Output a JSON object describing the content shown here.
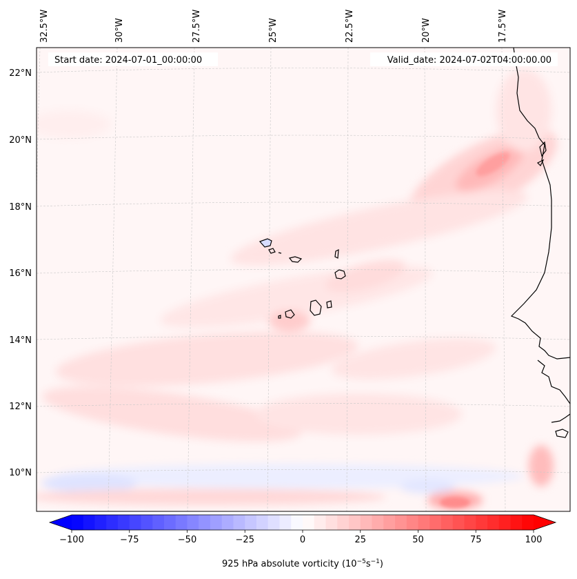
{
  "map": {
    "lon_labels": [
      "32.5°W",
      "30°W",
      "27.5°W",
      "25°W",
      "22.5°W",
      "20°W",
      "17.5°W"
    ],
    "lat_labels": [
      "22°N",
      "20°N",
      "18°N",
      "16°N",
      "14°N",
      "12°N",
      "10°N"
    ],
    "start_date": "Start date: 2024-07-01_00:00:00",
    "valid_date": "Valid_date: 2024-07-02T04:00:00.00"
  },
  "colorbar": {
    "ticks": [
      "−100",
      "−75",
      "−50",
      "−25",
      "0",
      "25",
      "50",
      "75",
      "100"
    ],
    "label_prefix": "925 hPa absolute vorticity (10",
    "label_exp1": "−5",
    "label_mid": "s",
    "label_exp2": "−1",
    "label_suffix": ")",
    "min": -100,
    "max": 100,
    "levels": 40,
    "color_negative": "#0000ff",
    "color_zero": "#ffffff",
    "color_positive": "#ff0000"
  }
}
